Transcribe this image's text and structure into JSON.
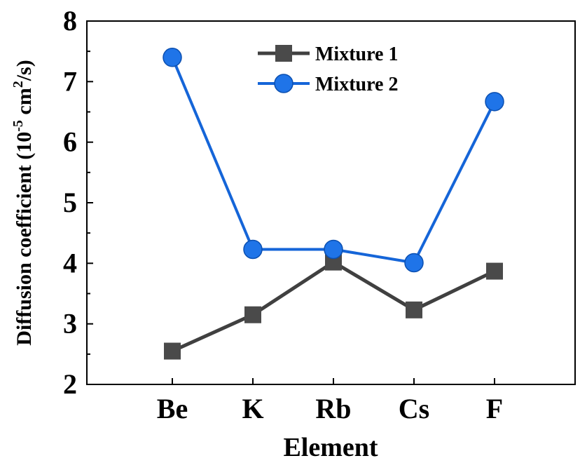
{
  "chart_data": {
    "type": "line",
    "title": "",
    "xlabel": "Element",
    "ylabel_main": "Diffusion coefficient (10",
    "ylabel_exp1": "-5",
    "ylabel_mid": " cm",
    "ylabel_exp2": "2",
    "ylabel_end": "/s)",
    "categories": [
      "Be",
      "K",
      "Rb",
      "Cs",
      "F"
    ],
    "ylim": [
      2,
      8
    ],
    "yticks": [
      "2",
      "3",
      "4",
      "5",
      "6",
      "7",
      "8"
    ],
    "legend_position": "top-center",
    "series": [
      {
        "name": "Mixture 1",
        "marker": "square",
        "color": "#404040",
        "values": [
          2.55,
          3.15,
          4.02,
          3.23,
          3.87
        ]
      },
      {
        "name": "Mixture 2",
        "marker": "circle",
        "color": "#1565d8",
        "values": [
          7.4,
          4.23,
          4.23,
          4.01,
          6.67
        ]
      }
    ]
  }
}
